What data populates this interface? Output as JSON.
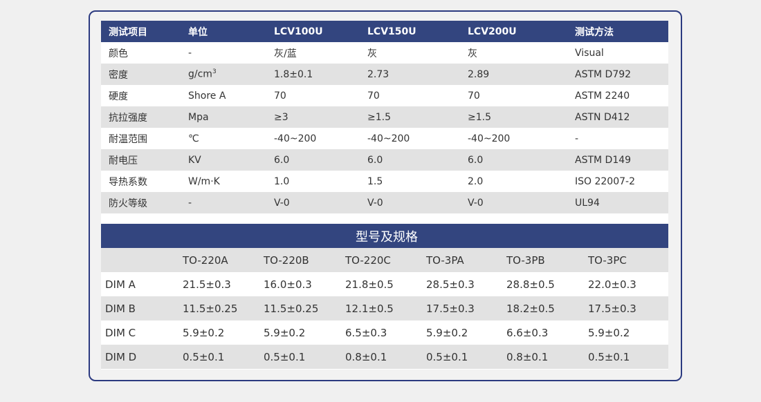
{
  "props_table": {
    "headers": [
      "测试项目",
      "单位",
      "LCV100U",
      "LCV150U",
      "LCV200U",
      "测试方法"
    ],
    "rows": [
      [
        "颜色",
        "-",
        "灰/蓝",
        "灰",
        "灰",
        "Visual"
      ],
      [
        "密度",
        "g/cm",
        "1.8±0.1",
        "2.73",
        "2.89",
        "ASTM D792"
      ],
      [
        "硬度",
        "Shore A",
        "70",
        "70",
        "70",
        "ASTM 2240"
      ],
      [
        "抗拉强度",
        "Mpa",
        "≥3",
        "≥1.5",
        "≥1.5",
        "ASTN D412"
      ],
      [
        "耐温范围",
        "℃",
        "-40~200",
        "-40~200",
        "-40~200",
        "-"
      ],
      [
        "耐电压",
        "KV",
        "6.0",
        "6.0",
        "6.0",
        "ASTM D149"
      ],
      [
        "导热系数",
        "W/m·K",
        "1.0",
        "1.5",
        "2.0",
        "ISO 22007-2"
      ],
      [
        "防火等级",
        "-",
        "V-0",
        "V-0",
        "V-0",
        "UL94"
      ]
    ],
    "density_unit_sup": "3"
  },
  "spec_table": {
    "title": "型号及规格",
    "headers": [
      "",
      "TO-220A",
      "TO-220B",
      "TO-220C",
      "TO-3PA",
      "TO-3PB",
      "TO-3PC"
    ],
    "rows": [
      [
        "DIM A",
        "21.5±0.3",
        "16.0±0.3",
        "21.8±0.5",
        "28.5±0.3",
        "28.8±0.5",
        "22.0±0.3"
      ],
      [
        "DIM B",
        "11.5±0.25",
        "11.5±0.25",
        "12.1±0.5",
        "17.5±0.3",
        "18.2±0.5",
        "17.5±0.3"
      ],
      [
        "DIM C",
        "5.9±0.2",
        "5.9±0.2",
        "6.5±0.3",
        "5.9±0.2",
        "6.6±0.3",
        "5.9±0.2"
      ],
      [
        "DIM D",
        "0.5±0.1",
        "0.5±0.1",
        "0.8±0.1",
        "0.5±0.1",
        "0.8±0.1",
        "0.5±0.1"
      ]
    ]
  },
  "colors": {
    "header": "#33457f",
    "border": "#2b3a80",
    "stripe": "#e2e2e2"
  }
}
